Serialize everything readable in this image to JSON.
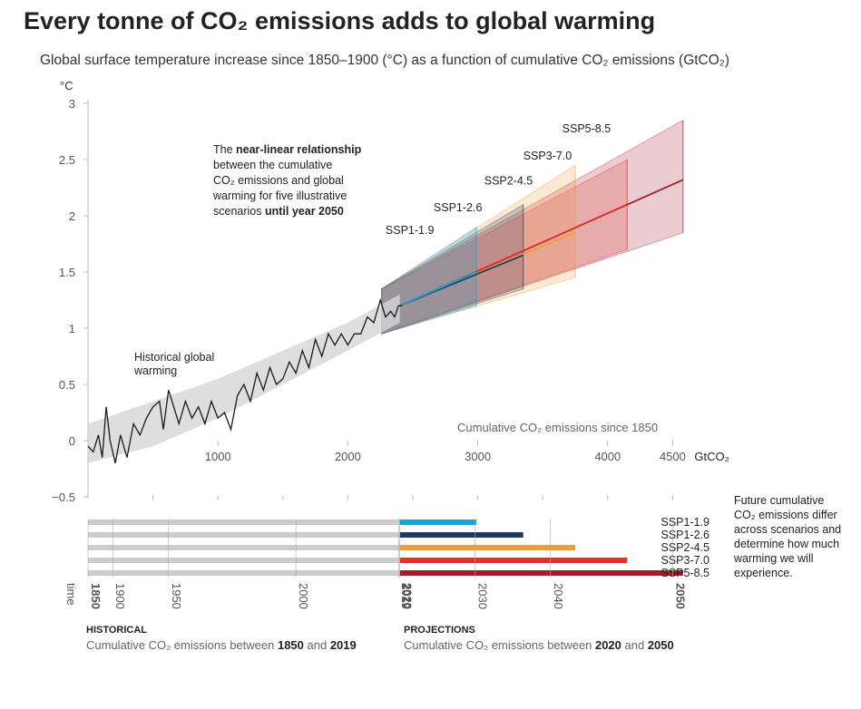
{
  "title": "Every tonne of CO₂ emissions adds to global warming",
  "subtitle": "Global surface temperature increase since 1850–1900 (°C) as a function of cumulative CO₂ emissions (GtCO₂)",
  "annotations": {
    "relationship_part1": "The ",
    "relationship_bold1": "near-linear relationship",
    "relationship_line2": "between the cumulative",
    "relationship_line3": "CO₂ emissions and global",
    "relationship_line4": "warming for five illustrative",
    "relationship_line5a": "scenarios ",
    "relationship_line5b": "until year 2050",
    "historical_line1": "Historical global",
    "historical_line2": "warming",
    "cumulative_since": "Cumulative CO₂ emissions since 1850",
    "future_line1": "Future cumulative",
    "future_line2": "CO₂ emissions differ",
    "future_line3": "across scenarios and",
    "future_line4": "determine how much",
    "future_line5": "warming we will",
    "future_line6": "experience."
  },
  "footer": {
    "historical_head": "HISTORICAL",
    "historical_text": "Cumulative CO₂ emissions between ",
    "historical_start": "1850",
    "historical_and": " and ",
    "historical_end": "2019",
    "projections_head": "PROJECTIONS",
    "projections_text": "Cumulative CO₂ emissions between ",
    "projections_start": "2020",
    "projections_and": " and ",
    "projections_end": "2050"
  },
  "chart_data": {
    "type": "line",
    "ylabel": "°C",
    "xunit": "GtCO₂",
    "yticks": [
      "3",
      "2.5",
      "2",
      "1.5",
      "1",
      "0.5",
      "0",
      "−0.5"
    ],
    "ytick_values": [
      3,
      2.5,
      2,
      1.5,
      1,
      0.5,
      0,
      -0.5
    ],
    "xticks": [
      "1000",
      "2000",
      "3000",
      "4000",
      "4500"
    ],
    "xtick_values": [
      1000,
      2000,
      3000,
      4000,
      4500
    ],
    "ylim": [
      -0.5,
      3
    ],
    "xlim": [
      0,
      4500
    ],
    "historical": {
      "x": [
        0,
        40,
        80,
        110,
        140,
        170,
        210,
        250,
        300,
        350,
        400,
        450,
        500,
        550,
        580,
        620,
        660,
        700,
        750,
        800,
        850,
        900,
        950,
        1000,
        1050,
        1100,
        1150,
        1200,
        1250,
        1300,
        1350,
        1400,
        1450,
        1500,
        1550,
        1600,
        1650,
        1700,
        1750,
        1800,
        1850,
        1900,
        1950,
        2000,
        2050,
        2100,
        2150,
        2200,
        2250,
        2290,
        2330,
        2360,
        2390,
        2420
      ],
      "y": [
        -0.05,
        -0.1,
        0.05,
        -0.15,
        0.3,
        0.0,
        -0.2,
        0.05,
        -0.15,
        0.15,
        0.05,
        0.2,
        0.3,
        0.35,
        0.1,
        0.45,
        0.3,
        0.15,
        0.35,
        0.2,
        0.3,
        0.15,
        0.35,
        0.2,
        0.25,
        0.1,
        0.4,
        0.5,
        0.35,
        0.6,
        0.45,
        0.65,
        0.5,
        0.55,
        0.7,
        0.6,
        0.8,
        0.65,
        0.9,
        0.75,
        0.95,
        0.85,
        0.95,
        0.85,
        0.95,
        0.95,
        1.1,
        1.05,
        1.25,
        1.1,
        1.15,
        1.1,
        1.2,
        1.2
      ],
      "band": {
        "x": [
          0,
          4500
        ],
        "note": "grey uncertainty band"
      }
    },
    "series": [
      {
        "name": "SSP1-1.9",
        "x_end": 2990,
        "y_end": 1.5,
        "band_end": [
          1.2,
          1.9
        ],
        "color": "#1ba3d8"
      },
      {
        "name": "SSP1-2.6",
        "x_end": 3350,
        "y_end": 1.65,
        "band_end": [
          1.35,
          2.1
        ],
        "color": "#1e3a64"
      },
      {
        "name": "SSP2-4.5",
        "x_end": 3750,
        "y_end": 1.85,
        "band_end": [
          1.45,
          2.45
        ],
        "color": "#ec9d3b"
      },
      {
        "name": "SSP3-7.0",
        "x_end": 4150,
        "y_end": 2.1,
        "band_end": [
          1.7,
          2.5
        ],
        "color": "#e0322a"
      },
      {
        "name": "SSP5-8.5",
        "x_end": 4580,
        "y_end": 2.32,
        "band_end": [
          1.85,
          2.85
        ],
        "color": "#a51c2d"
      }
    ],
    "timeline": {
      "label": "time",
      "years": [
        "1850",
        "1900",
        "1950",
        "2000",
        "2019",
        "2020",
        "2030",
        "2040",
        "2050"
      ],
      "year_x_emissions": [
        0,
        190,
        620,
        1600,
        2390,
        2400,
        2980,
        3560,
        4500
      ],
      "bars": [
        {
          "name": "SSP1-1.9",
          "end": 2990,
          "color": "#1ba3d8"
        },
        {
          "name": "SSP1-2.6",
          "end": 3350,
          "color": "#1e3a64"
        },
        {
          "name": "SSP2-4.5",
          "end": 3750,
          "color": "#ec9d3b"
        },
        {
          "name": "SSP3-7.0",
          "end": 4150,
          "color": "#e0322a"
        },
        {
          "name": "SSP5-8.5",
          "end": 4580,
          "color": "#a51c2d"
        }
      ],
      "historical_color": "#cccccc"
    }
  }
}
